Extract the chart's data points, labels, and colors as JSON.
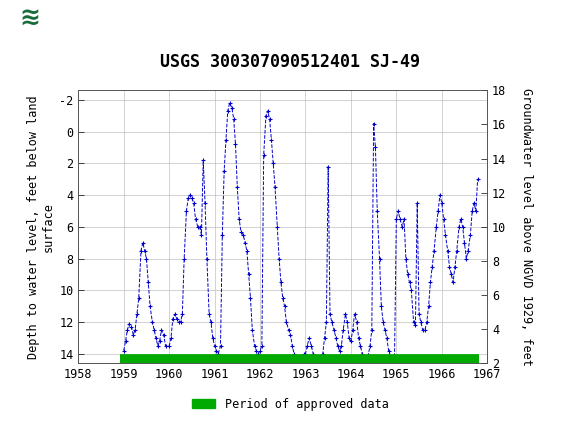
{
  "title": "USGS 300307090512401 SJ-49",
  "ylabel_left": "Depth to water level, feet below land\nsurface",
  "ylabel_right": "Groundwater level above NGVD 1929, feet",
  "xlim": [
    1958,
    1967
  ],
  "ylim_left": [
    14.6,
    -2.6
  ],
  "ylim_right": [
    2,
    18
  ],
  "yticks_left": [
    -2,
    0,
    2,
    4,
    6,
    8,
    10,
    12,
    14
  ],
  "yticks_right": [
    2,
    4,
    6,
    8,
    10,
    12,
    14,
    16,
    18
  ],
  "xticks": [
    1958,
    1959,
    1960,
    1961,
    1962,
    1963,
    1964,
    1965,
    1966,
    1967
  ],
  "line_color": "#0000cc",
  "approved_bar_color": "#00aa00",
  "approved_bar_y": 14.35,
  "approved_bar_x_start": 1958.92,
  "approved_bar_x_end": 1966.83,
  "background_color": "#ffffff",
  "header_color": "#1a6b3c",
  "grid_color": "#c0c0c0",
  "title_fontsize": 12,
  "label_fontsize": 8.5,
  "tick_fontsize": 8.5,
  "data_x": [
    1959.0,
    1959.04,
    1959.08,
    1959.12,
    1959.17,
    1959.21,
    1959.25,
    1959.29,
    1959.33,
    1959.38,
    1959.42,
    1959.46,
    1959.5,
    1959.54,
    1959.58,
    1959.63,
    1959.67,
    1959.71,
    1959.75,
    1959.79,
    1959.83,
    1959.88,
    1959.92,
    1960.0,
    1960.04,
    1960.08,
    1960.13,
    1960.17,
    1960.21,
    1960.25,
    1960.29,
    1960.33,
    1960.38,
    1960.42,
    1960.46,
    1960.5,
    1960.54,
    1960.58,
    1960.63,
    1960.67,
    1960.71,
    1960.75,
    1960.79,
    1960.83,
    1960.88,
    1960.92,
    1960.96,
    1961.0,
    1961.04,
    1961.08,
    1961.13,
    1961.17,
    1961.21,
    1961.25,
    1961.29,
    1961.33,
    1961.38,
    1961.42,
    1961.46,
    1961.5,
    1961.54,
    1961.58,
    1961.63,
    1961.67,
    1961.71,
    1961.75,
    1961.79,
    1961.83,
    1961.88,
    1961.92,
    1961.96,
    1962.0,
    1962.04,
    1962.08,
    1962.13,
    1962.17,
    1962.21,
    1962.25,
    1962.29,
    1962.33,
    1962.38,
    1962.42,
    1962.46,
    1962.5,
    1962.54,
    1962.58,
    1962.63,
    1962.67,
    1962.71,
    1962.75,
    1962.79,
    1962.83,
    1962.88,
    1962.92,
    1962.96,
    1963.0,
    1963.04,
    1963.08,
    1963.13,
    1963.17,
    1963.21,
    1963.25,
    1963.29,
    1963.33,
    1963.38,
    1963.42,
    1963.46,
    1963.5,
    1963.54,
    1963.58,
    1963.63,
    1963.67,
    1963.71,
    1963.75,
    1963.79,
    1963.83,
    1963.88,
    1963.92,
    1963.96,
    1964.0,
    1964.04,
    1964.08,
    1964.13,
    1964.17,
    1964.21,
    1964.25,
    1964.29,
    1964.33,
    1964.38,
    1964.42,
    1964.46,
    1964.5,
    1964.54,
    1964.58,
    1964.63,
    1964.67,
    1964.71,
    1964.75,
    1964.79,
    1964.83,
    1964.88,
    1964.92,
    1964.96,
    1965.0,
    1965.04,
    1965.08,
    1965.13,
    1965.17,
    1965.21,
    1965.25,
    1965.29,
    1965.33,
    1965.38,
    1965.42,
    1965.46,
    1965.5,
    1965.54,
    1965.58,
    1965.63,
    1965.67,
    1965.71,
    1965.75,
    1965.79,
    1965.83,
    1965.88,
    1965.92,
    1965.96,
    1966.0,
    1966.04,
    1966.08,
    1966.13,
    1966.17,
    1966.21,
    1966.25,
    1966.29,
    1966.33,
    1966.38,
    1966.42,
    1966.46,
    1966.5,
    1966.54,
    1966.58,
    1966.63,
    1966.67,
    1966.71,
    1966.75,
    1966.79
  ],
  "data_y": [
    13.8,
    13.2,
    12.5,
    12.1,
    12.3,
    12.8,
    12.5,
    11.5,
    10.5,
    7.5,
    7.0,
    7.5,
    8.0,
    9.5,
    11.0,
    12.0,
    12.5,
    13.0,
    13.5,
    13.2,
    12.5,
    12.8,
    13.5,
    13.5,
    13.0,
    11.8,
    11.5,
    11.8,
    12.0,
    12.0,
    11.5,
    8.0,
    5.0,
    4.2,
    4.0,
    4.2,
    4.5,
    5.5,
    6.0,
    6.0,
    6.5,
    1.8,
    4.5,
    8.0,
    11.5,
    12.0,
    13.0,
    13.5,
    13.8,
    14.0,
    13.5,
    6.5,
    2.5,
    0.5,
    -1.3,
    -1.8,
    -1.5,
    -0.8,
    0.8,
    3.5,
    5.5,
    6.3,
    6.5,
    7.0,
    7.5,
    9.0,
    10.5,
    12.5,
    13.5,
    13.8,
    14.0,
    13.8,
    13.5,
    1.5,
    -1.0,
    -1.3,
    -0.8,
    0.5,
    2.0,
    3.5,
    6.0,
    8.0,
    9.5,
    10.5,
    11.0,
    12.0,
    12.5,
    12.8,
    13.5,
    14.0,
    14.2,
    14.3,
    14.3,
    14.2,
    14.0,
    14.0,
    13.5,
    13.0,
    13.5,
    14.0,
    14.2,
    14.3,
    14.3,
    14.2,
    14.0,
    13.0,
    12.0,
    2.2,
    11.5,
    12.0,
    12.5,
    13.0,
    13.5,
    13.8,
    13.5,
    12.5,
    11.5,
    12.0,
    13.0,
    13.2,
    12.5,
    11.5,
    12.0,
    13.0,
    13.5,
    14.0,
    14.2,
    14.3,
    14.1,
    13.5,
    12.5,
    -0.5,
    1.0,
    5.0,
    8.0,
    11.0,
    12.0,
    12.5,
    13.0,
    13.8,
    14.2,
    14.3,
    14.3,
    5.5,
    5.0,
    5.5,
    6.0,
    5.5,
    8.0,
    9.0,
    9.5,
    10.0,
    12.0,
    12.2,
    4.5,
    11.5,
    12.0,
    12.5,
    12.5,
    12.0,
    11.0,
    9.5,
    8.5,
    7.5,
    6.0,
    5.0,
    4.0,
    4.5,
    5.5,
    6.5,
    7.5,
    8.5,
    9.0,
    9.5,
    8.5,
    7.5,
    6.0,
    5.5,
    6.0,
    7.0,
    8.0,
    7.5,
    6.5,
    5.0,
    4.5,
    5.0,
    3.0
  ]
}
